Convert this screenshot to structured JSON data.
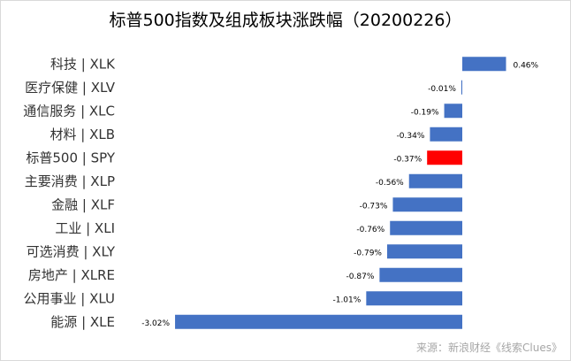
{
  "chart_data": {
    "type": "bar",
    "orientation": "horizontal",
    "title": "标普500指数及组成板块涨跌幅（20200226）",
    "categories": [
      "科技 | XLK",
      "医疗保健 | XLV",
      "通信服务 | XLC",
      "材料 | XLB",
      "标普500 | SPY",
      "主要消费 | XLP",
      "金融 | XLF",
      "工业 | XLI",
      "可选消费 | XLY",
      "房地产 | XLRE",
      "公用事业 | XLU",
      "能源 | XLE"
    ],
    "values": [
      0.46,
      -0.01,
      -0.19,
      -0.34,
      -0.37,
      -0.56,
      -0.73,
      -0.76,
      -0.79,
      -0.87,
      -1.01,
      -3.02
    ],
    "data_labels": [
      "0.46%",
      "-0.01%",
      "-0.19%",
      "-0.34%",
      "-0.37%",
      "-0.56%",
      "-0.73%",
      "-0.76%",
      "-0.79%",
      "-0.87%",
      "-1.01%",
      "-3.02%"
    ],
    "highlight_index": 4,
    "colors": {
      "default": "#4472C4",
      "highlight": "#FF0000"
    },
    "xlabel": "",
    "ylabel": "",
    "grid": false,
    "legend": "none"
  },
  "source": "来源：新浪财经《线索Clues》"
}
